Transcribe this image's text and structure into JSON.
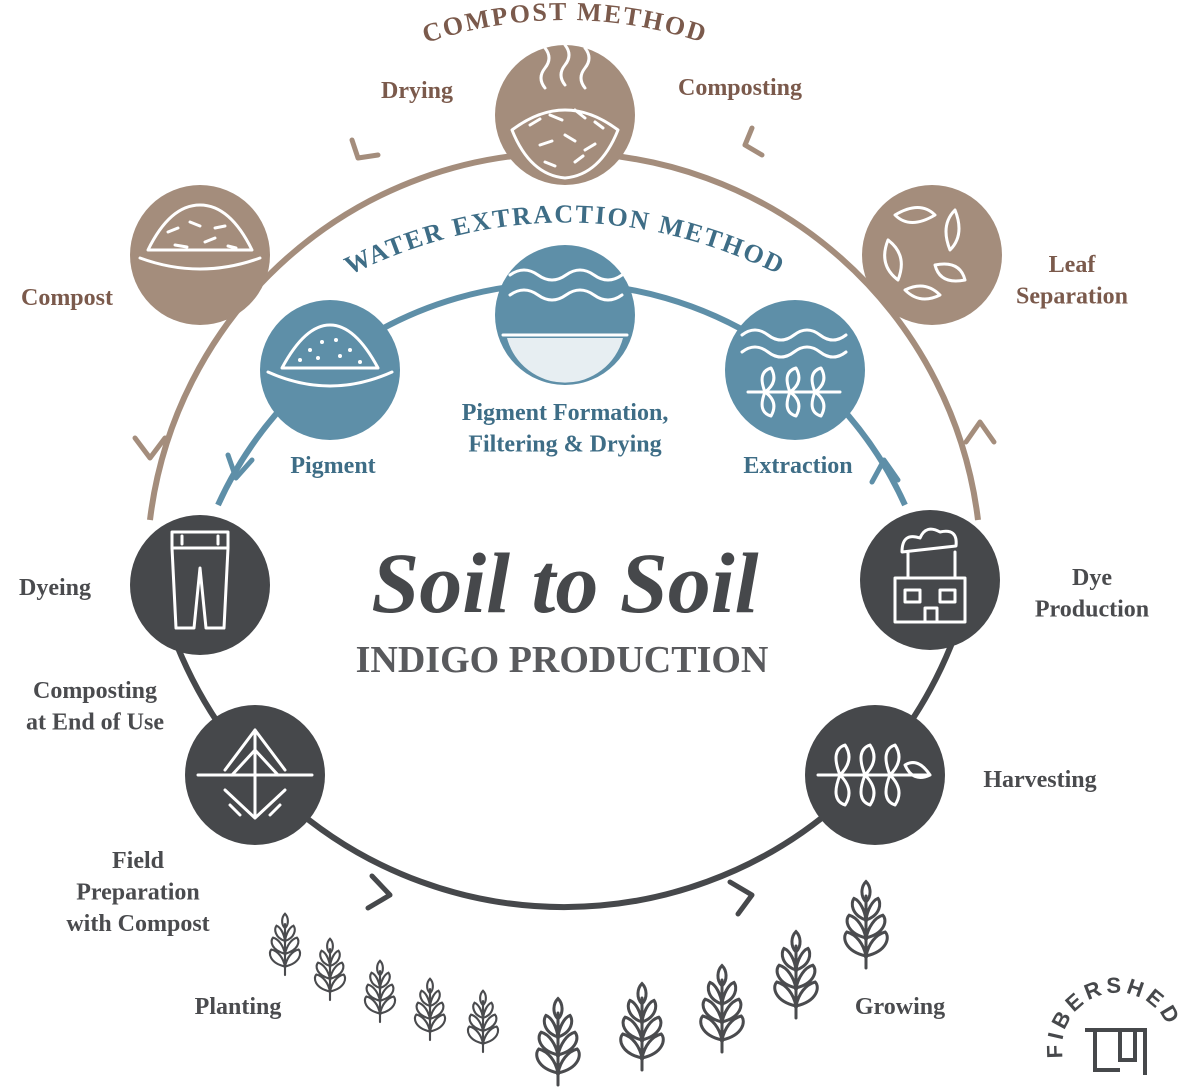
{
  "title": "Soil to Soil",
  "subtitle": "INDIGO PRODUCTION",
  "methods": {
    "compost": "COMPOST METHOD",
    "water": "WATER EXTRACTION METHOD"
  },
  "stages": [
    {
      "label_lines": [
        "Drying"
      ]
    },
    {
      "label_lines": [
        "Composting"
      ]
    },
    {
      "label_lines": [
        "Leaf",
        "Separation"
      ]
    },
    {
      "label_lines": [
        "Compost"
      ]
    },
    {
      "label_lines": [
        "Dyeing"
      ]
    },
    {
      "label_lines": [
        "Composting",
        "at End of Use"
      ]
    },
    {
      "label_lines": [
        "Field",
        "Preparation",
        "with Compost"
      ]
    },
    {
      "label_lines": [
        "Planting"
      ]
    },
    {
      "label_lines": [
        "Growing"
      ]
    },
    {
      "label_lines": [
        "Harvesting"
      ]
    },
    {
      "label_lines": [
        "Dye",
        "Production"
      ]
    },
    {
      "label_lines": [
        "Pigment"
      ]
    },
    {
      "label_lines": [
        "Pigment Formation,",
        "Filtering & Drying"
      ]
    },
    {
      "label_lines": [
        "Extraction"
      ]
    }
  ],
  "logo": "FIBERSHED"
}
